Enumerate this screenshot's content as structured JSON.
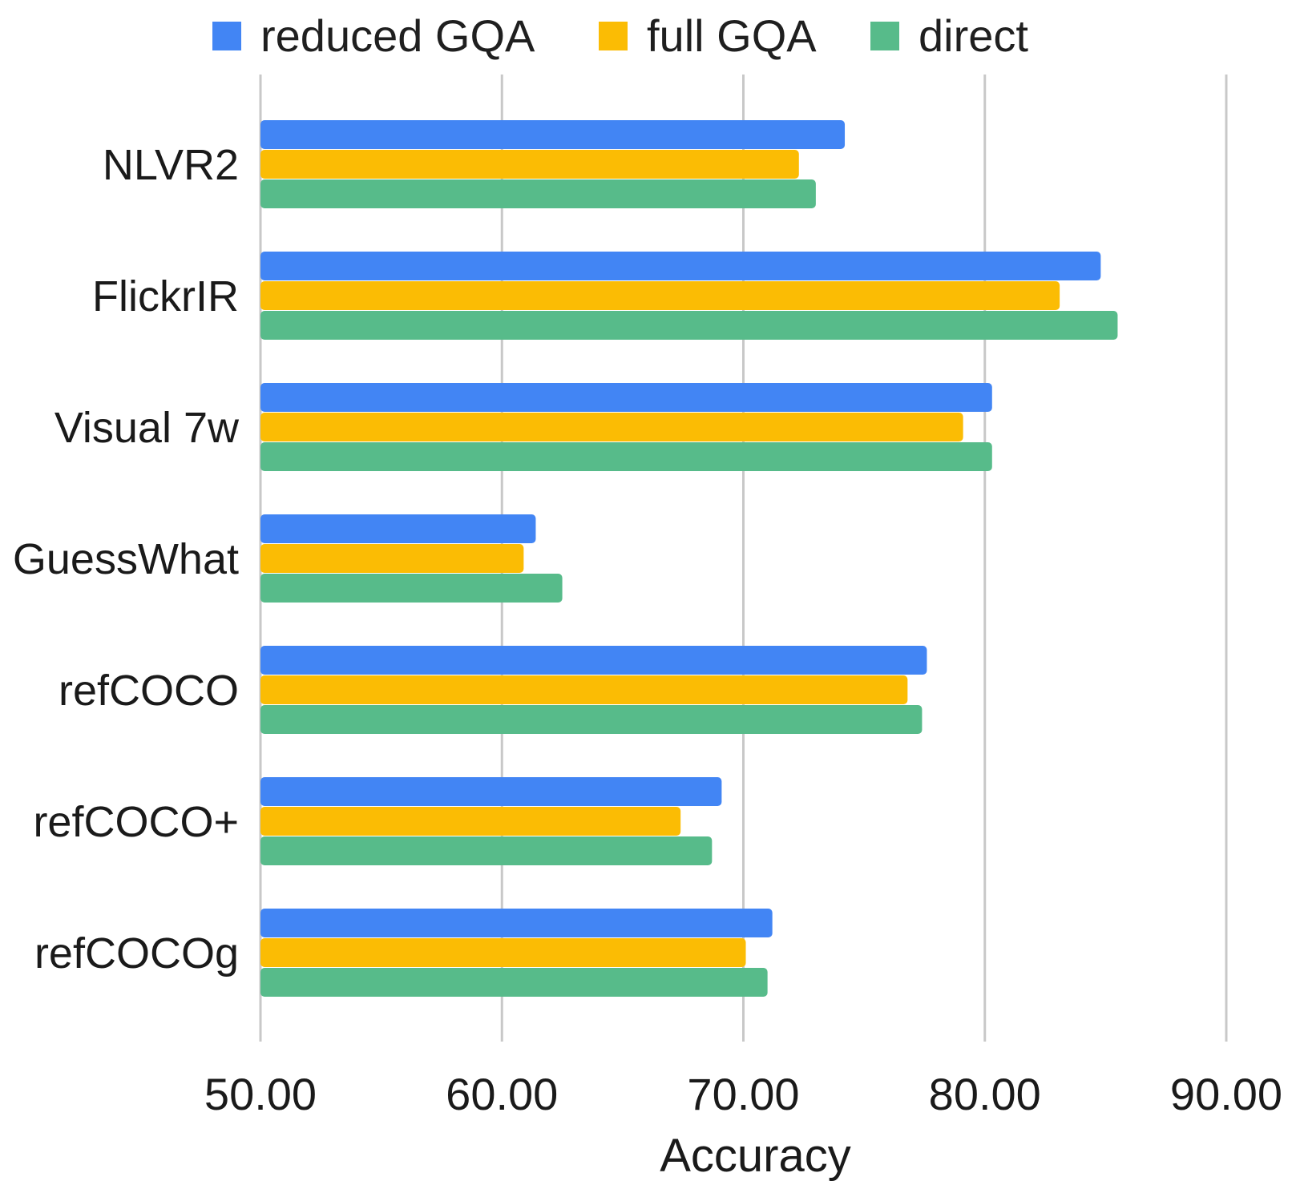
{
  "chart_data": {
    "type": "bar",
    "orientation": "horizontal",
    "title": "",
    "xlabel": "Accuracy",
    "ylabel": "",
    "xlim": [
      50,
      90
    ],
    "grid": true,
    "legend_position": "top",
    "categories": [
      "NLVR2",
      "FlickrIR",
      "Visual 7w",
      "GuessWhat",
      "refCOCO",
      "refCOCO+",
      "refCOCOg"
    ],
    "x_ticks": [
      "50.00",
      "60.00",
      "70.00",
      "80.00",
      "90.00"
    ],
    "series": [
      {
        "name": "reduced GQA",
        "color": "#4285f4",
        "values": [
          74.2,
          84.8,
          80.3,
          61.4,
          77.6,
          69.1,
          71.2
        ]
      },
      {
        "name": "full GQA",
        "color": "#fbbc04",
        "values": [
          72.3,
          83.1,
          79.1,
          60.9,
          76.8,
          67.4,
          70.1
        ]
      },
      {
        "name": "direct",
        "color": "#57bb8a",
        "values": [
          73.0,
          85.5,
          80.3,
          62.5,
          77.4,
          68.7,
          71.0
        ]
      }
    ]
  }
}
